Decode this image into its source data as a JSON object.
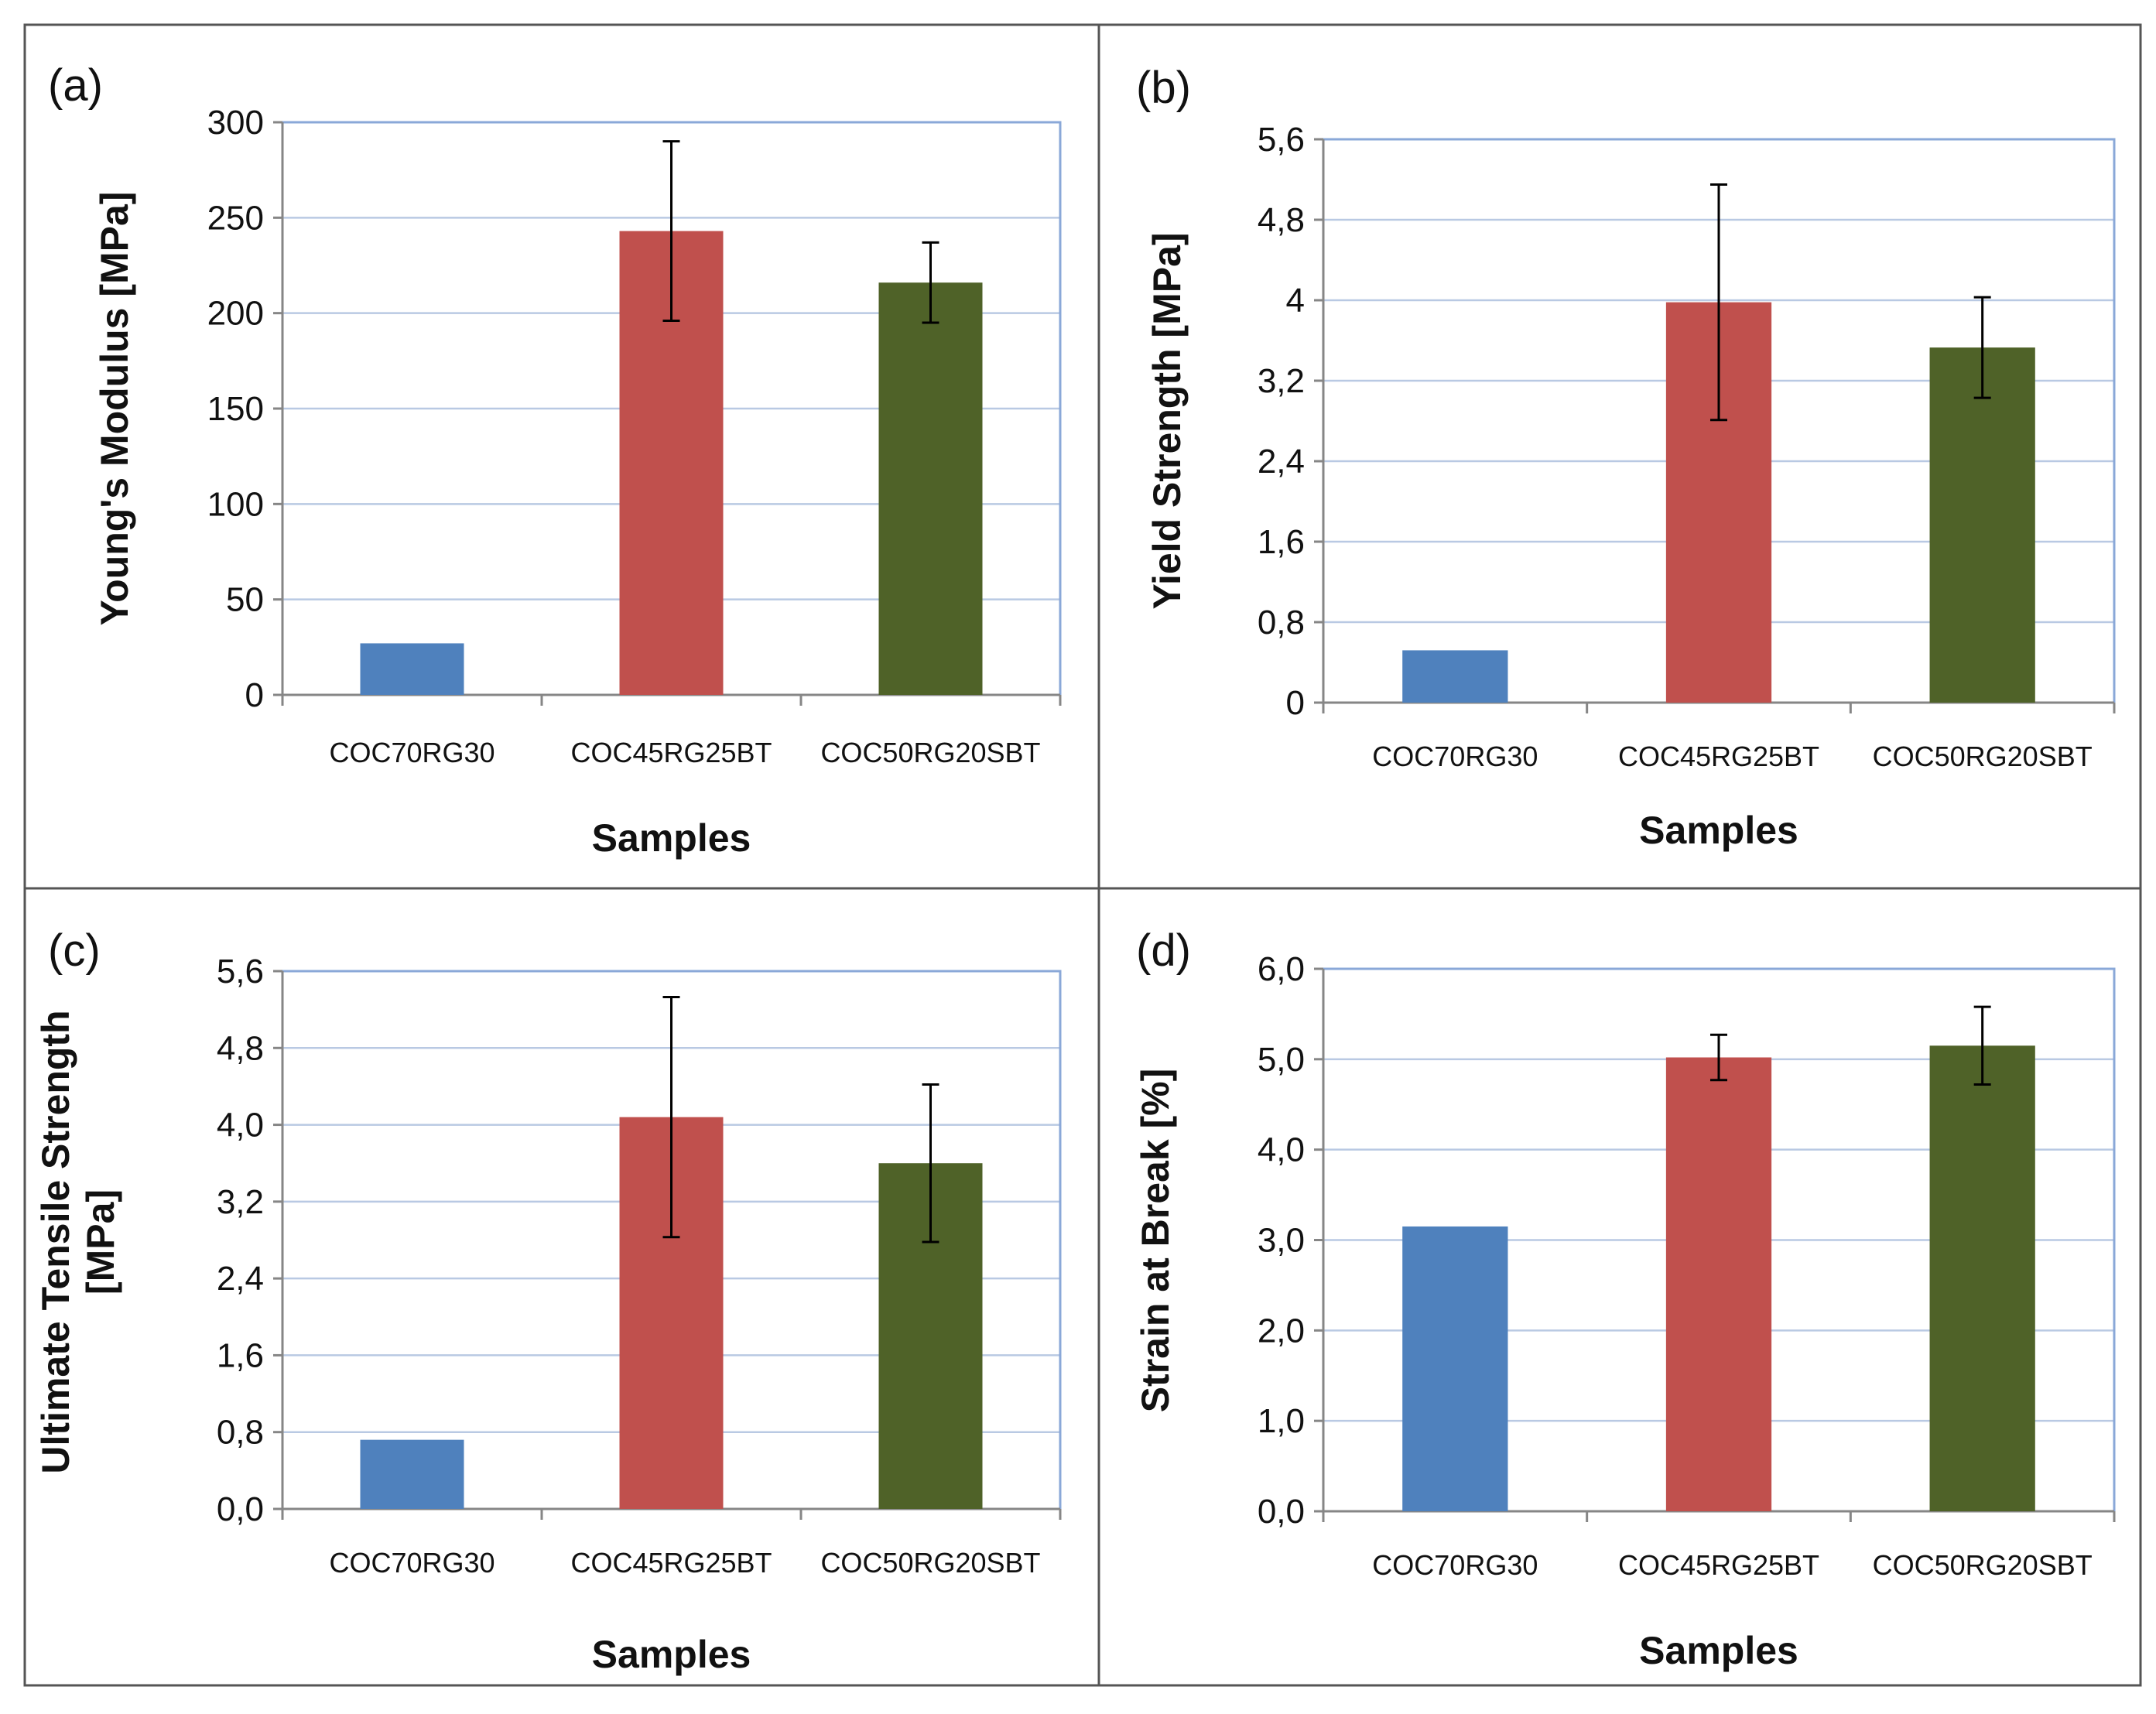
{
  "colors": {
    "series": [
      "#4f81bd",
      "#c0504d",
      "#4f6228"
    ],
    "grid": "#b9c9e3",
    "frame": "#8aa8d8"
  },
  "chart_data": [
    {
      "type": "bar",
      "panel_label": "(a)",
      "title": "",
      "categories": [
        "COC70RG30",
        "COC45RG25BT",
        "COC50RG20SBT"
      ],
      "values": [
        27,
        243,
        216
      ],
      "errors": [
        null,
        47,
        21
      ],
      "xlabel": "Samples",
      "ylabel_lines": [
        "Young's Modulus [MPa]"
      ],
      "ylim": [
        0,
        300
      ],
      "yticks": [
        "0",
        "50",
        "100",
        "150",
        "200",
        "250",
        "300"
      ],
      "grid": true
    },
    {
      "type": "bar",
      "panel_label": "(b)",
      "title": "",
      "categories": [
        "COC70RG30",
        "COC45RG25BT",
        "COC50RG20SBT"
      ],
      "values": [
        0.52,
        3.98,
        3.53
      ],
      "errors": [
        null,
        1.17,
        0.5
      ],
      "xlabel": "Samples",
      "ylabel_lines": [
        "Yield Strength [MPa]"
      ],
      "ylim": [
        0,
        5.6
      ],
      "yticks": [
        "0",
        "0,8",
        "1,6",
        "2,4",
        "3,2",
        "4",
        "4,8",
        "5,6"
      ],
      "grid": true
    },
    {
      "type": "bar",
      "panel_label": "(c)",
      "title": "",
      "categories": [
        "COC70RG30",
        "COC45RG25BT",
        "COC50RG20SBT"
      ],
      "values": [
        0.72,
        4.08,
        3.6
      ],
      "errors": [
        null,
        1.25,
        0.82
      ],
      "xlabel": "Samples",
      "ylabel_lines": [
        "Ultimate Tensile Strength",
        "[MPa]"
      ],
      "ylim": [
        0,
        5.6
      ],
      "yticks": [
        "0,0",
        "0,8",
        "1,6",
        "2,4",
        "3,2",
        "4,0",
        "4,8",
        "5,6"
      ],
      "grid": true
    },
    {
      "type": "bar",
      "panel_label": "(d)",
      "title": "",
      "categories": [
        "COC70RG30",
        "COC45RG25BT",
        "COC50RG20SBT"
      ],
      "values": [
        3.15,
        5.02,
        5.15
      ],
      "errors": [
        null,
        0.25,
        0.43
      ],
      "xlabel": "Samples",
      "ylabel_lines": [
        "Strain at Break [%]"
      ],
      "ylim": [
        0,
        6.0
      ],
      "yticks": [
        "0,0",
        "1,0",
        "2,0",
        "3,0",
        "4,0",
        "5,0",
        "6,0"
      ],
      "grid": true
    }
  ]
}
